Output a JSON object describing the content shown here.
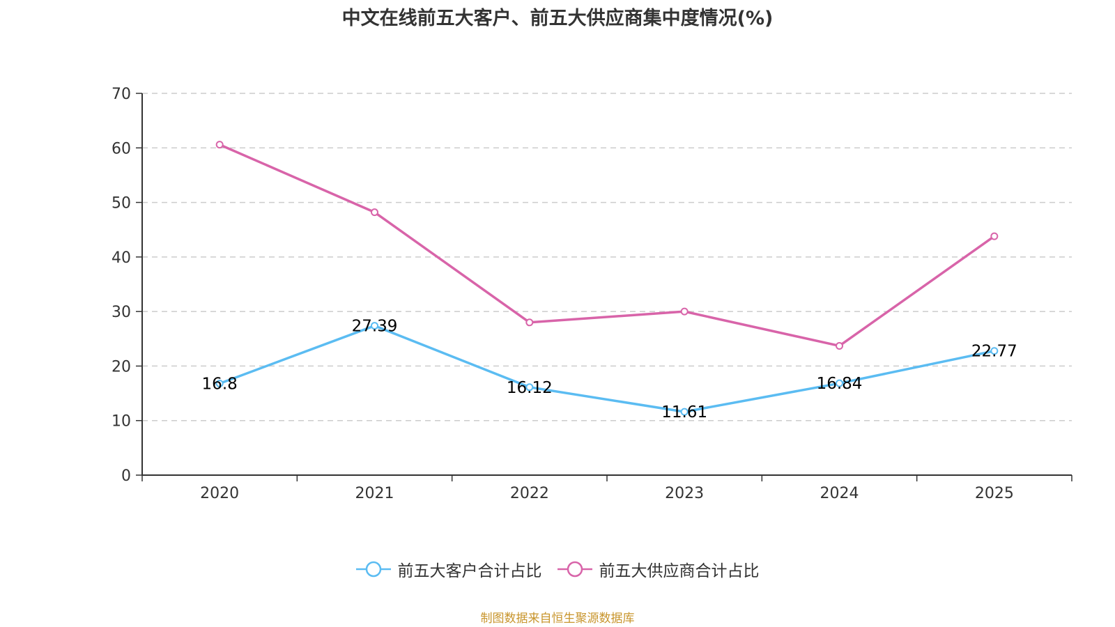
{
  "chart_data": {
    "type": "line",
    "title": "中文在线前五大客户、前五大供应商集中度情况(%)",
    "xlabel": "",
    "ylabel": "",
    "categories": [
      "2020",
      "2021",
      "2022",
      "2023",
      "2024",
      "2025"
    ],
    "ylim": [
      0,
      70
    ],
    "yticks": [
      0,
      10,
      20,
      30,
      40,
      50,
      60,
      70
    ],
    "grid": true,
    "legend_position": "bottom",
    "series": [
      {
        "name": "前五大客户合计占比",
        "color": "#5bbcf2",
        "values": [
          16.8,
          27.39,
          16.12,
          11.61,
          16.84,
          22.77
        ],
        "labels": [
          "16.8",
          "27.39",
          "16.12",
          "11.61",
          "16.84",
          "22.77"
        ],
        "show_labels": true
      },
      {
        "name": "前五大供应商合计占比",
        "color": "#d864a9",
        "values": [
          60.6,
          48.2,
          28.0,
          30.0,
          23.7,
          43.8
        ],
        "show_labels": false
      }
    ],
    "source": "制图数据来自恒生聚源数据库"
  }
}
